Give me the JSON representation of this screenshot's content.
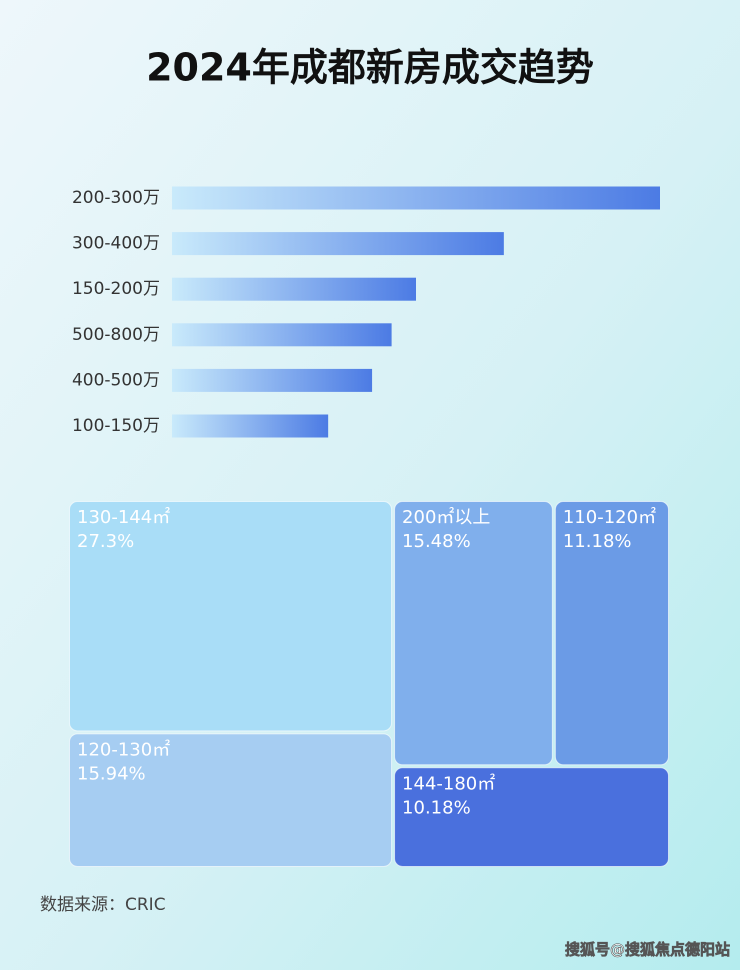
{
  "chart_data": [
    {
      "type": "bar",
      "orientation": "horizontal",
      "title": "2024年成都新房成交趋势",
      "categories": [
        "200-300万",
        "300-400万",
        "150-200万",
        "500-800万",
        "400-500万",
        "100-150万"
      ],
      "values": [
        100,
        68,
        50,
        45,
        41,
        32
      ],
      "xlim": [
        0,
        100
      ]
    },
    {
      "type": "treemap",
      "categories": [
        "130-144㎡",
        "120-130㎡",
        "200㎡以上",
        "110-120㎡",
        "144-180㎡"
      ],
      "values": [
        27.3,
        15.94,
        15.48,
        11.18,
        10.18
      ],
      "value_labels": [
        "27.3%",
        "15.94%",
        "15.48%",
        "11.18%",
        "10.18%"
      ],
      "colors": [
        "#a9ddf7",
        "#a6cdf2",
        "#80afec",
        "#6b9be6",
        "#4a70dd"
      ]
    }
  ],
  "source": "数据来源：CRIC",
  "watermark": "搜狐号@搜狐焦点德阳站"
}
